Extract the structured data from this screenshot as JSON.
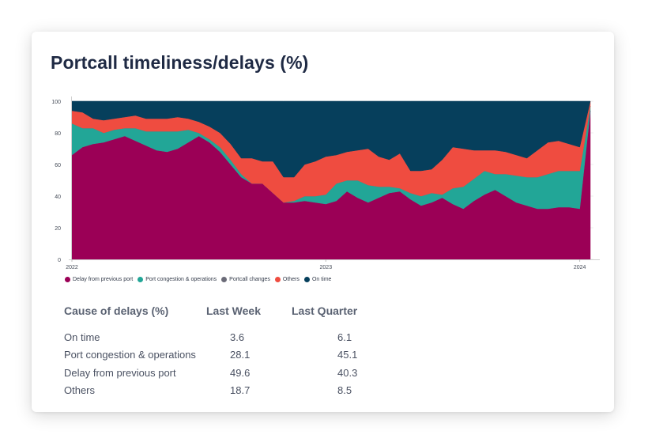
{
  "title": "Portcall timeliness/delays (%)",
  "chart_data": {
    "type": "area",
    "stacked": true,
    "ylim": [
      0,
      100
    ],
    "y_ticks": [
      0,
      20,
      40,
      60,
      80,
      100
    ],
    "x_tick_labels": [
      "2022",
      "2023",
      "2024"
    ],
    "x_tick_positions": [
      0,
      24,
      48
    ],
    "x": [
      0,
      1,
      2,
      3,
      4,
      5,
      6,
      7,
      8,
      9,
      10,
      11,
      12,
      13,
      14,
      15,
      16,
      17,
      18,
      19,
      20,
      21,
      22,
      23,
      24,
      25,
      26,
      27,
      28,
      29,
      30,
      31,
      32,
      33,
      34,
      35,
      36,
      37,
      38,
      39,
      40,
      41,
      42,
      43,
      44,
      45,
      46,
      47,
      48,
      49
    ],
    "grid": "horizontal",
    "legend_position": "bottom-left",
    "series": [
      {
        "name": "Delay from previous port",
        "color": "#9b0056",
        "values": [
          66,
          71,
          73,
          74,
          76,
          78,
          75,
          72,
          69,
          68,
          70,
          74,
          78,
          74,
          68,
          60,
          52,
          48,
          48,
          42,
          36,
          36,
          37,
          36,
          35,
          37,
          43,
          39,
          36,
          39,
          42,
          43,
          38,
          34,
          36,
          39,
          35,
          32,
          37,
          41,
          44,
          40,
          36,
          34,
          32,
          32,
          33,
          33,
          32,
          94
        ]
      },
      {
        "name": "Port congestion & operations",
        "color": "#22a697",
        "values": [
          20,
          12,
          10,
          6,
          6,
          5,
          8,
          9,
          12,
          13,
          11,
          8,
          2,
          2,
          3,
          3,
          2,
          0,
          0,
          0,
          0,
          1,
          3,
          4,
          6,
          11,
          7,
          11,
          11,
          7,
          4,
          2,
          4,
          6,
          6,
          2,
          10,
          14,
          14,
          15,
          10,
          14,
          17,
          18,
          20,
          22,
          23,
          23,
          24,
          3
        ]
      },
      {
        "name": "Portcall changes",
        "color": "#6b6b78",
        "values": [
          0,
          0,
          0,
          0,
          0,
          0,
          0,
          0,
          0,
          0,
          0,
          0,
          0,
          0,
          0,
          0,
          0,
          0,
          0,
          0,
          0,
          0,
          0,
          0,
          0,
          0,
          0,
          0,
          0,
          0,
          0,
          0,
          0,
          0,
          0,
          0,
          0,
          0,
          0,
          0,
          0,
          0,
          0,
          0,
          0,
          0,
          0,
          0,
          0,
          0
        ]
      },
      {
        "name": "Others",
        "color": "#ef4c40",
        "values": [
          8,
          10,
          6,
          8,
          7,
          7,
          8,
          8,
          8,
          8,
          9,
          7,
          7,
          8,
          9,
          10,
          10,
          16,
          14,
          20,
          16,
          15,
          20,
          22,
          24,
          18,
          18,
          19,
          23,
          19,
          17,
          22,
          14,
          16,
          15,
          22,
          26,
          24,
          18,
          13,
          15,
          14,
          13,
          12,
          17,
          20,
          19,
          17,
          15,
          3
        ]
      },
      {
        "name": "On time",
        "color": "#063f5c",
        "values": [
          6,
          7,
          11,
          12,
          11,
          10,
          9,
          11,
          11,
          11,
          10,
          11,
          13,
          16,
          20,
          27,
          36,
          36,
          38,
          38,
          48,
          48,
          40,
          38,
          35,
          34,
          32,
          31,
          30,
          35,
          37,
          33,
          44,
          44,
          43,
          37,
          29,
          30,
          31,
          31,
          31,
          32,
          34,
          36,
          31,
          26,
          25,
          27,
          29,
          0
        ]
      }
    ]
  },
  "table": {
    "headers": [
      "Cause of delays (%)",
      "Last Week",
      "Last Quarter"
    ],
    "rows": [
      [
        "On time",
        "3.6",
        "6.1"
      ],
      [
        "Port congestion & operations",
        "28.1",
        "45.1"
      ],
      [
        "Delay from previous port",
        "49.6",
        "40.3"
      ],
      [
        "Others",
        "18.7",
        "8.5"
      ]
    ]
  }
}
